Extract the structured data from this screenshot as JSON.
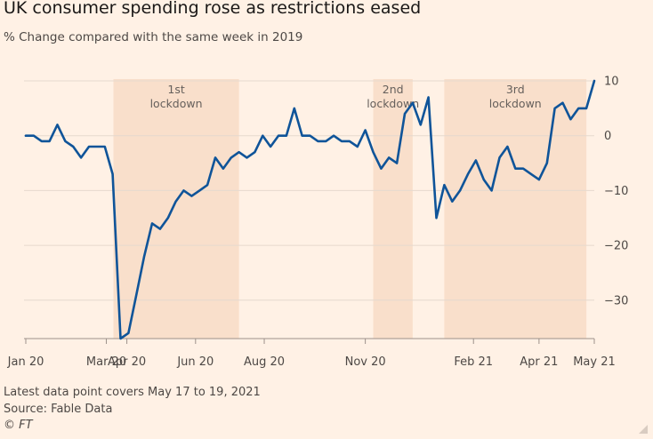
{
  "chart_data": {
    "type": "line",
    "title": "UK consumer spending rose as restrictions eased",
    "subtitle": "% Change compared with the same week in 2019",
    "ylim": [
      -37,
      10
    ],
    "yticks": [
      10,
      0,
      -10,
      -20,
      -30
    ],
    "ytick_labels": [
      "10",
      "0",
      "−10",
      "−20",
      "−30"
    ],
    "xlim": [
      0,
      72
    ],
    "xticks": [
      {
        "x": 0,
        "label": "Jan 20"
      },
      {
        "x": 10.2,
        "label": "Mar 20"
      },
      {
        "x": 12.8,
        "label": "Apr 20"
      },
      {
        "x": 21.5,
        "label": "Jun 20"
      },
      {
        "x": 30.2,
        "label": "Aug 20"
      },
      {
        "x": 43.0,
        "label": "Nov 20"
      },
      {
        "x": 56.7,
        "label": "Feb 21"
      },
      {
        "x": 65.0,
        "label": "Apr 21"
      },
      {
        "x": 72.0,
        "label": "May 21"
      }
    ],
    "lockdowns": [
      {
        "label_line1": "1st",
        "label_line2": "lockdown",
        "x_start": 11.1,
        "x_end": 27.0
      },
      {
        "label_line1": "2nd",
        "label_line2": "lockdown",
        "x_start": 44.0,
        "x_end": 49.0
      },
      {
        "label_line1": "3rd",
        "label_line2": "lockdown",
        "x_start": 53.0,
        "x_end": 71.0
      }
    ],
    "grid": true,
    "series": [
      {
        "name": "",
        "color": "#0f5499",
        "points": [
          [
            0,
            0
          ],
          [
            1,
            0
          ],
          [
            2,
            -1
          ],
          [
            3,
            -1
          ],
          [
            4,
            2
          ],
          [
            5,
            -1
          ],
          [
            6,
            -2
          ],
          [
            7,
            -4
          ],
          [
            8,
            -2
          ],
          [
            9,
            -2
          ],
          [
            10,
            -2
          ],
          [
            11,
            -7
          ],
          [
            12,
            -37
          ],
          [
            13,
            -36
          ],
          [
            14,
            -29
          ],
          [
            15,
            -22
          ],
          [
            16,
            -16
          ],
          [
            17,
            -17
          ],
          [
            18,
            -15
          ],
          [
            19,
            -12
          ],
          [
            20,
            -10
          ],
          [
            21,
            -11
          ],
          [
            22,
            -10
          ],
          [
            23,
            -9
          ],
          [
            24,
            -4
          ],
          [
            25,
            -6
          ],
          [
            26,
            -4
          ],
          [
            27,
            -3
          ],
          [
            28,
            -4
          ],
          [
            29,
            -3
          ],
          [
            30,
            0
          ],
          [
            31,
            -2
          ],
          [
            32,
            0
          ],
          [
            33,
            0
          ],
          [
            34,
            5
          ],
          [
            35,
            0
          ],
          [
            36,
            0
          ],
          [
            37,
            -1
          ],
          [
            38,
            -1
          ],
          [
            39,
            0
          ],
          [
            40,
            -1
          ],
          [
            41,
            -1
          ],
          [
            42,
            -2
          ],
          [
            43,
            1
          ],
          [
            44,
            -3
          ],
          [
            45,
            -6
          ],
          [
            46,
            -4
          ],
          [
            47,
            -5
          ],
          [
            48,
            4
          ],
          [
            49,
            6
          ],
          [
            50,
            2
          ],
          [
            51,
            7
          ],
          [
            52,
            -15
          ],
          [
            53,
            -9
          ],
          [
            54,
            -12
          ],
          [
            55,
            -10
          ],
          [
            56,
            -7
          ],
          [
            57,
            -4.5
          ],
          [
            58,
            -8
          ],
          [
            59,
            -10
          ],
          [
            60,
            -4
          ],
          [
            61,
            -2
          ],
          [
            62,
            -6
          ],
          [
            63,
            -6
          ],
          [
            64,
            -7
          ],
          [
            65,
            -8
          ],
          [
            66,
            -5
          ],
          [
            67,
            5
          ],
          [
            68,
            6
          ],
          [
            69,
            3
          ],
          [
            70,
            5
          ],
          [
            71,
            5
          ],
          [
            72,
            10
          ]
        ]
      }
    ]
  },
  "footer": {
    "note": "Latest data point covers May 17 to 19, 2021",
    "source": "Source: Fable Data",
    "brand": "© FT"
  },
  "colors": {
    "background": "#fff1e5",
    "shade": "#f9dfcb",
    "grid": "#e6d9ce",
    "line": "#0f5499"
  }
}
